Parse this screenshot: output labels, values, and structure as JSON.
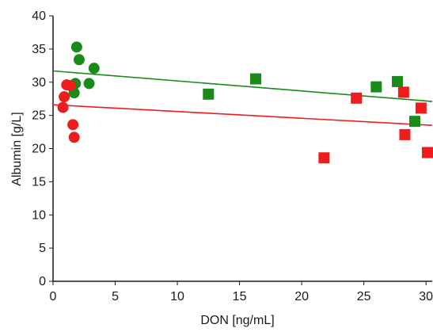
{
  "chart_data": {
    "type": "scatter",
    "title": "",
    "xlabel": "DON [ng/mL]",
    "ylabel": "Albumin [g/L]",
    "xlim": [
      0,
      30.5
    ],
    "ylim": [
      0,
      40
    ],
    "xticks": [
      "0",
      "5",
      "10",
      "15",
      "20",
      "25",
      "30"
    ],
    "yticks": [
      "0",
      "5",
      "10",
      "15",
      "20",
      "25",
      "30",
      "35",
      "40"
    ],
    "grid": false,
    "legend": "none",
    "series": [
      {
        "color": "#1a8a1a",
        "marker": "circle",
        "points": [
          {
            "x": 1.9,
            "y": 35.3
          },
          {
            "x": 2.1,
            "y": 33.4
          },
          {
            "x": 3.3,
            "y": 32.1
          },
          {
            "x": 1.8,
            "y": 29.8
          },
          {
            "x": 1.7,
            "y": 28.4
          },
          {
            "x": 2.9,
            "y": 29.8
          }
        ]
      },
      {
        "color": "#1a8a1a",
        "marker": "square",
        "points": [
          {
            "x": 12.5,
            "y": 28.2
          },
          {
            "x": 16.3,
            "y": 30.5
          },
          {
            "x": 26.0,
            "y": 29.3
          },
          {
            "x": 27.7,
            "y": 30.1
          },
          {
            "x": 29.1,
            "y": 24.1
          }
        ]
      },
      {
        "color": "#ee1c1c",
        "marker": "circle",
        "points": [
          {
            "x": 1.1,
            "y": 29.6
          },
          {
            "x": 1.4,
            "y": 29.5
          },
          {
            "x": 0.9,
            "y": 27.8
          },
          {
            "x": 0.8,
            "y": 26.2
          },
          {
            "x": 1.6,
            "y": 23.6
          },
          {
            "x": 1.7,
            "y": 21.7
          }
        ]
      },
      {
        "color": "#ee1c1c",
        "marker": "square",
        "points": [
          {
            "x": 21.8,
            "y": 18.6
          },
          {
            "x": 24.4,
            "y": 27.6
          },
          {
            "x": 28.2,
            "y": 28.5
          },
          {
            "x": 28.3,
            "y": 22.1
          },
          {
            "x": 29.6,
            "y": 26.1
          },
          {
            "x": 30.6,
            "y": 19.4
          }
        ]
      }
    ],
    "fit_lines": [
      {
        "color": "#1a8a1a",
        "x": [
          0,
          30.5
        ],
        "y": [
          31.7,
          27.1
        ]
      },
      {
        "color": "#ee1c1c",
        "x": [
          0,
          30.5
        ],
        "y": [
          26.6,
          23.5
        ]
      }
    ]
  }
}
